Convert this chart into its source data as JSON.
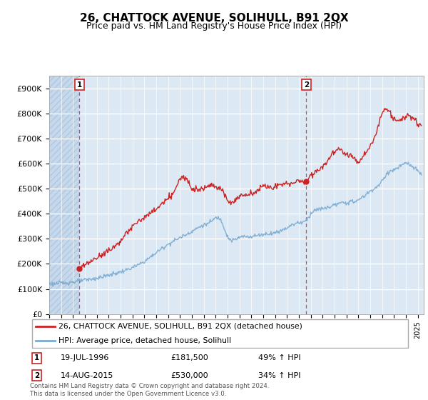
{
  "title": "26, CHATTOCK AVENUE, SOLIHULL, B91 2QX",
  "subtitle": "Price paid vs. HM Land Registry's House Price Index (HPI)",
  "ylim": [
    0,
    950000
  ],
  "yticks": [
    0,
    100000,
    200000,
    300000,
    400000,
    500000,
    600000,
    700000,
    800000,
    900000
  ],
  "ytick_labels": [
    "£0",
    "£100K",
    "£200K",
    "£300K",
    "£400K",
    "£500K",
    "£600K",
    "£700K",
    "£800K",
    "£900K"
  ],
  "xlim_start": 1994.0,
  "xlim_end": 2025.5,
  "sale1_date": 1996.54,
  "sale1_price": 181500,
  "sale1_label": "1",
  "sale2_date": 2015.62,
  "sale2_price": 530000,
  "sale2_label": "2",
  "hpi_line_color": "#7aaad0",
  "price_line_color": "#cc2222",
  "marker_color": "#cc2222",
  "dashed_line_color": "#cc2222",
  "legend_label_red": "26, CHATTOCK AVENUE, SOLIHULL, B91 2QX (detached house)",
  "legend_label_blue": "HPI: Average price, detached house, Solihull",
  "sale1_info": "19-JUL-1996",
  "sale1_price_str": "£181,500",
  "sale1_hpi_str": "49% ↑ HPI",
  "sale2_info": "14-AUG-2015",
  "sale2_price_str": "£530,000",
  "sale2_hpi_str": "34% ↑ HPI",
  "footer": "Contains HM Land Registry data © Crown copyright and database right 2024.\nThis data is licensed under the Open Government Licence v3.0.",
  "grid_color": "#cccccc",
  "bg_color": "#dce9f5",
  "hatch_color": "#c5d8ec"
}
